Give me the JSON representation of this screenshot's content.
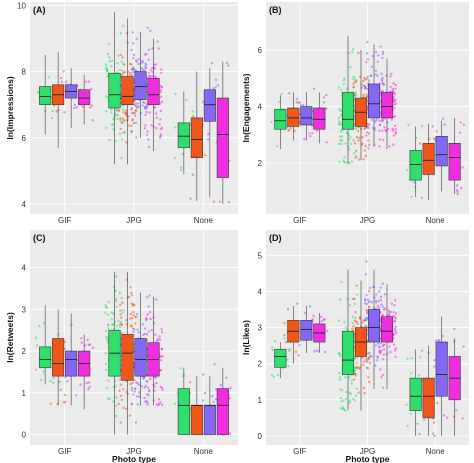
{
  "colors": {
    "s1": "#2ee06b",
    "s2": "#f0551a",
    "s3": "#8468f5",
    "s4": "#ef2ee0"
  },
  "chart_data": [
    {
      "type": "box",
      "tag": "(A)",
      "ylabel": "ln(Impressions)",
      "xlabel": "",
      "categories": [
        "GIF",
        "JPG",
        "None"
      ],
      "yticks": [
        4,
        6,
        8,
        10
      ],
      "ylim": [
        3.7,
        10.1
      ],
      "boxes": [
        [
          {
            "min": 6.1,
            "q1": 7.0,
            "median": 7.25,
            "q3": 7.55,
            "max": 8.5
          },
          {
            "min": 5.7,
            "q1": 7.0,
            "median": 7.3,
            "q3": 7.6,
            "max": 8.6
          },
          {
            "min": 6.3,
            "q1": 7.2,
            "median": 7.4,
            "q3": 7.6,
            "max": 8.1
          },
          {
            "min": 6.4,
            "q1": 7.0,
            "median": 7.2,
            "q3": 7.45,
            "max": 7.9
          }
        ],
        [
          {
            "min": 5.2,
            "q1": 6.9,
            "median": 7.3,
            "q3": 7.95,
            "max": 9.8
          },
          {
            "min": 5.2,
            "q1": 7.0,
            "median": 7.25,
            "q3": 7.85,
            "max": 9.6
          },
          {
            "min": 6.0,
            "q1": 7.15,
            "median": 7.55,
            "q3": 8.0,
            "max": 9.2
          },
          {
            "min": 5.6,
            "q1": 7.0,
            "median": 7.3,
            "q3": 7.8,
            "max": 9.0
          }
        ],
        [
          {
            "min": 4.9,
            "q1": 5.7,
            "median": 6.05,
            "q3": 6.45,
            "max": 7.4
          },
          {
            "min": 4.1,
            "q1": 5.4,
            "median": 5.95,
            "q3": 6.6,
            "max": 8.0
          },
          {
            "min": 4.2,
            "q1": 6.5,
            "median": 7.0,
            "q3": 7.45,
            "max": 8.1
          },
          {
            "min": 4.0,
            "q1": 4.8,
            "median": 6.1,
            "q3": 7.2,
            "max": 8.3
          }
        ]
      ]
    },
    {
      "type": "box",
      "tag": "(B)",
      "ylabel": "ln(Engagements)",
      "xlabel": "",
      "categories": [
        "GIF",
        "JPG",
        "None"
      ],
      "yticks": [
        2,
        4,
        6
      ],
      "ylim": [
        0.2,
        7.7
      ],
      "boxes": [
        [
          {
            "min": 2.5,
            "q1": 3.2,
            "median": 3.5,
            "q3": 3.9,
            "max": 4.4
          },
          {
            "min": 2.8,
            "q1": 3.3,
            "median": 3.6,
            "q3": 3.95,
            "max": 4.5
          },
          {
            "min": 2.8,
            "q1": 3.35,
            "median": 3.6,
            "q3": 4.0,
            "max": 4.5
          },
          {
            "min": 2.7,
            "q1": 3.2,
            "median": 3.55,
            "q3": 3.95,
            "max": 4.5
          }
        ],
        [
          {
            "min": 2.0,
            "q1": 3.2,
            "median": 3.55,
            "q3": 4.5,
            "max": 6.5
          },
          {
            "min": 2.1,
            "q1": 3.3,
            "median": 3.8,
            "q3": 4.3,
            "max": 6.0
          },
          {
            "min": 2.6,
            "q1": 3.6,
            "median": 4.1,
            "q3": 4.8,
            "max": 6.2
          },
          {
            "min": 2.5,
            "q1": 3.6,
            "median": 4.0,
            "q3": 4.5,
            "max": 5.7
          }
        ],
        [
          {
            "min": 0.8,
            "q1": 1.4,
            "median": 1.95,
            "q3": 2.45,
            "max": 3.3
          },
          {
            "min": 0.7,
            "q1": 1.6,
            "median": 2.1,
            "q3": 2.7,
            "max": 3.4
          },
          {
            "min": 1.0,
            "q1": 1.9,
            "median": 2.3,
            "q3": 2.95,
            "max": 3.5
          },
          {
            "min": 0.9,
            "q1": 1.4,
            "median": 2.2,
            "q3": 2.7,
            "max": 3.6
          }
        ]
      ]
    },
    {
      "type": "box",
      "tag": "(C)",
      "ylabel": "ln(Retweets)",
      "xlabel": "Photo type",
      "categories": [
        "GIF",
        "JPG",
        "None"
      ],
      "yticks": [
        0,
        1,
        2,
        3,
        4
      ],
      "ylim": [
        -0.25,
        4.9
      ],
      "boxes": [
        [
          {
            "min": 1.2,
            "q1": 1.6,
            "median": 1.8,
            "q3": 2.1,
            "max": 3.1
          },
          {
            "min": 0.7,
            "q1": 1.4,
            "median": 1.7,
            "q3": 2.3,
            "max": 3.0
          },
          {
            "min": 0.7,
            "q1": 1.4,
            "median": 1.8,
            "q3": 2.0,
            "max": 2.9
          },
          {
            "min": 0.6,
            "q1": 1.4,
            "median": 1.7,
            "q3": 2.0,
            "max": 2.4
          }
        ],
        [
          {
            "min": 0.0,
            "q1": 1.4,
            "median": 1.95,
            "q3": 2.5,
            "max": 3.9
          },
          {
            "min": 0.0,
            "q1": 1.3,
            "median": 1.95,
            "q3": 2.4,
            "max": 3.9
          },
          {
            "min": 0.7,
            "q1": 1.4,
            "median": 1.8,
            "q3": 2.3,
            "max": 3.4
          },
          {
            "min": 0.7,
            "q1": 1.4,
            "median": 1.8,
            "q3": 2.2,
            "max": 3.3
          }
        ],
        [
          {
            "min": 0.0,
            "q1": 0.0,
            "median": 0.7,
            "q3": 1.1,
            "max": 1.6
          },
          {
            "min": 0.0,
            "q1": 0.0,
            "median": 0.7,
            "q3": 0.7,
            "max": 1.4
          },
          {
            "min": 0.0,
            "q1": 0.0,
            "median": 0.7,
            "q3": 0.7,
            "max": 1.4
          },
          {
            "min": 0.0,
            "q1": 0.0,
            "median": 0.7,
            "q3": 1.1,
            "max": 1.6
          }
        ]
      ]
    },
    {
      "type": "box",
      "tag": "(D)",
      "ylabel": "ln(Likes)",
      "xlabel": "Photo type",
      "categories": [
        "GIF",
        "JPG",
        "None"
      ],
      "yticks": [
        0,
        1,
        2,
        3,
        4,
        5
      ],
      "ylim": [
        -0.25,
        5.7
      ],
      "boxes": [
        [
          {
            "min": 1.6,
            "q1": 1.9,
            "median": 2.2,
            "q3": 2.4,
            "max": 2.6
          },
          {
            "min": 2.0,
            "q1": 2.6,
            "median": 2.9,
            "q3": 3.2,
            "max": 3.6
          },
          {
            "min": 2.3,
            "q1": 2.65,
            "median": 2.95,
            "q3": 3.2,
            "max": 3.6
          },
          {
            "min": 2.3,
            "q1": 2.6,
            "median": 2.85,
            "q3": 3.1,
            "max": 3.4
          }
        ],
        [
          {
            "min": 0.7,
            "q1": 1.7,
            "median": 2.1,
            "q3": 2.9,
            "max": 4.6
          },
          {
            "min": 0.7,
            "q1": 2.2,
            "median": 2.6,
            "q3": 3.0,
            "max": 4.3
          },
          {
            "min": 1.3,
            "q1": 2.6,
            "median": 3.0,
            "q3": 3.5,
            "max": 4.6
          },
          {
            "min": 1.3,
            "q1": 2.6,
            "median": 2.9,
            "q3": 3.3,
            "max": 4.2
          }
        ],
        [
          {
            "min": 0.0,
            "q1": 0.7,
            "median": 1.1,
            "q3": 1.6,
            "max": 2.4
          },
          {
            "min": 0.0,
            "q1": 0.5,
            "median": 1.1,
            "q3": 1.6,
            "max": 2.5
          },
          {
            "min": 0.0,
            "q1": 1.1,
            "median": 1.7,
            "q3": 2.6,
            "max": 3.3
          },
          {
            "min": 0.0,
            "q1": 1.0,
            "median": 1.6,
            "q3": 2.2,
            "max": 2.7
          }
        ]
      ]
    }
  ]
}
